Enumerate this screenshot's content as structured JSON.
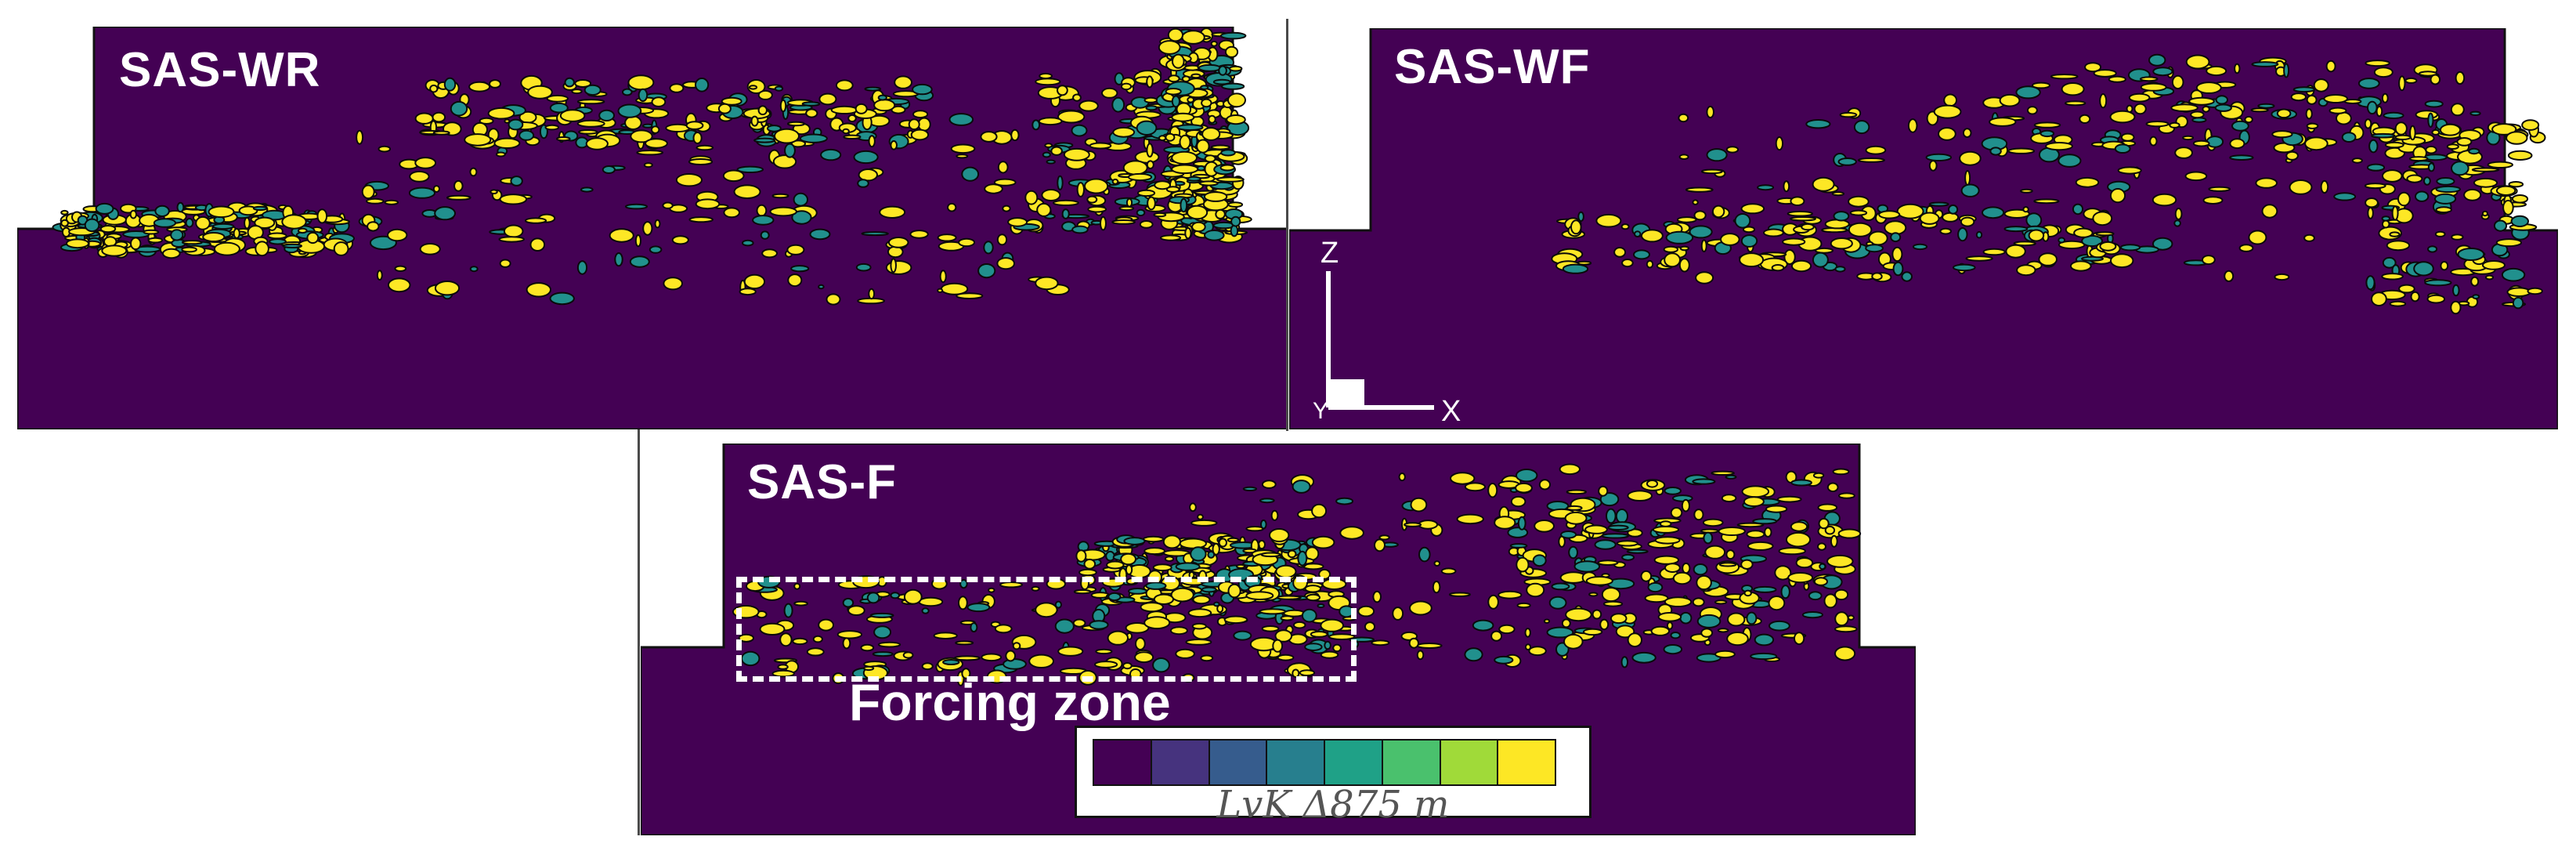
{
  "panels": [
    {
      "id": "wr",
      "label": "SAS-WR"
    },
    {
      "id": "wf",
      "label": "SAS-WF"
    },
    {
      "id": "f",
      "label": "SAS-F"
    }
  ],
  "axes": {
    "z": "Z",
    "y": "Y",
    "x": "X"
  },
  "forcing": {
    "label": "Forcing zone"
  },
  "colorbar": {
    "label": "L_vK Δ875 m",
    "label_display": "LvK Δ875 m",
    "colors": [
      "#440154",
      "#46337e",
      "#365c8d",
      "#277f8e",
      "#1fa187",
      "#4ac16d",
      "#a0da39",
      "#fde725"
    ]
  },
  "colors": {
    "background": "#440154",
    "structure": "#fde725",
    "edge": "#0a0a0a"
  }
}
